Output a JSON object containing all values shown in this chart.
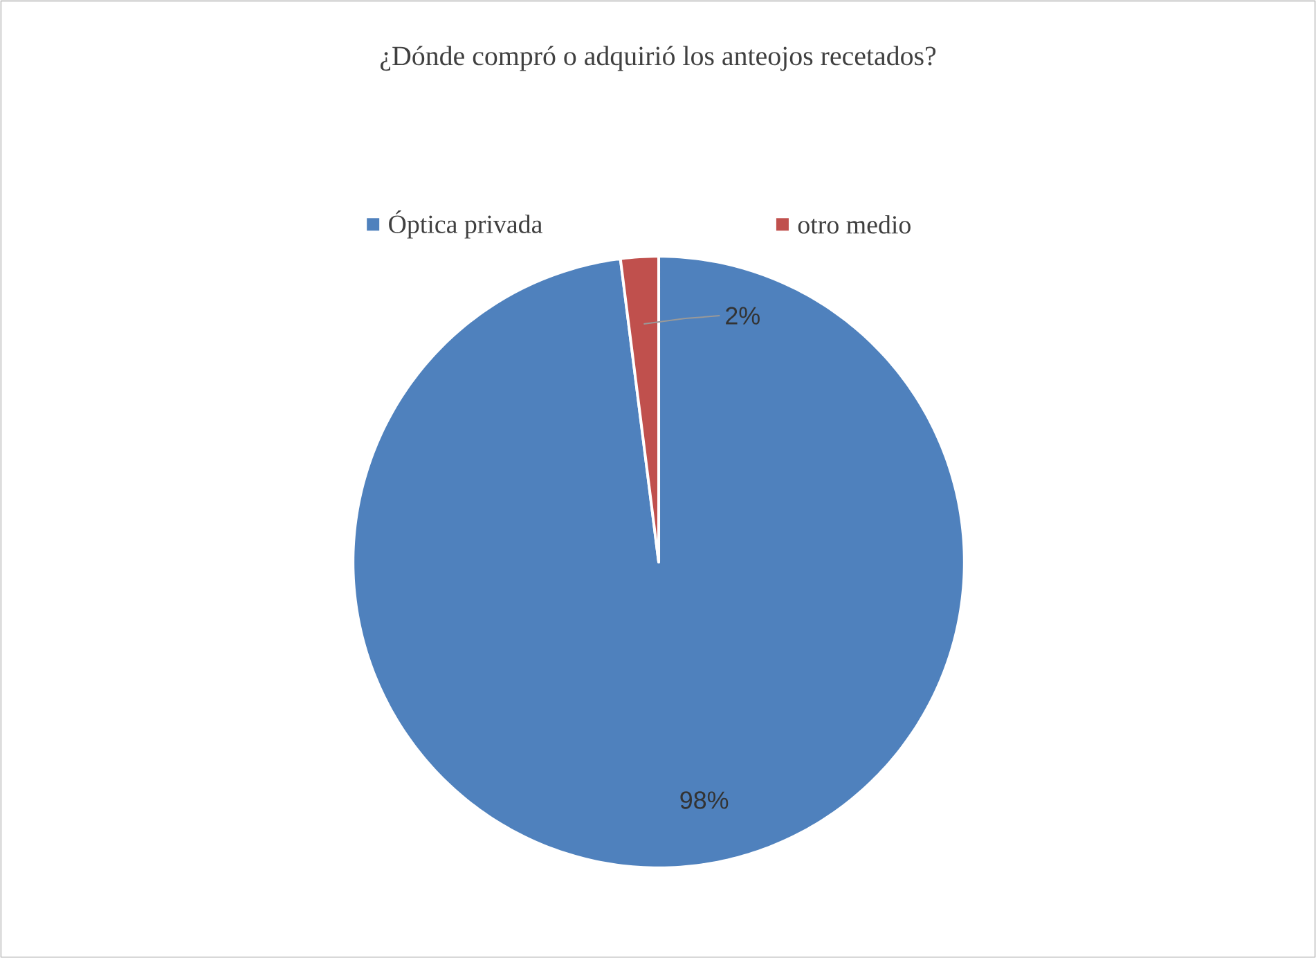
{
  "chart_data": {
    "type": "pie",
    "title": "¿Dónde compró o adquirió los anteojos recetados?",
    "categories": [
      "Óptica privada",
      "otro medio"
    ],
    "values": [
      98,
      2
    ],
    "value_labels": [
      "98%",
      "2%"
    ],
    "colors": [
      "#4f81bd",
      "#c0504d"
    ],
    "legend": "top"
  }
}
